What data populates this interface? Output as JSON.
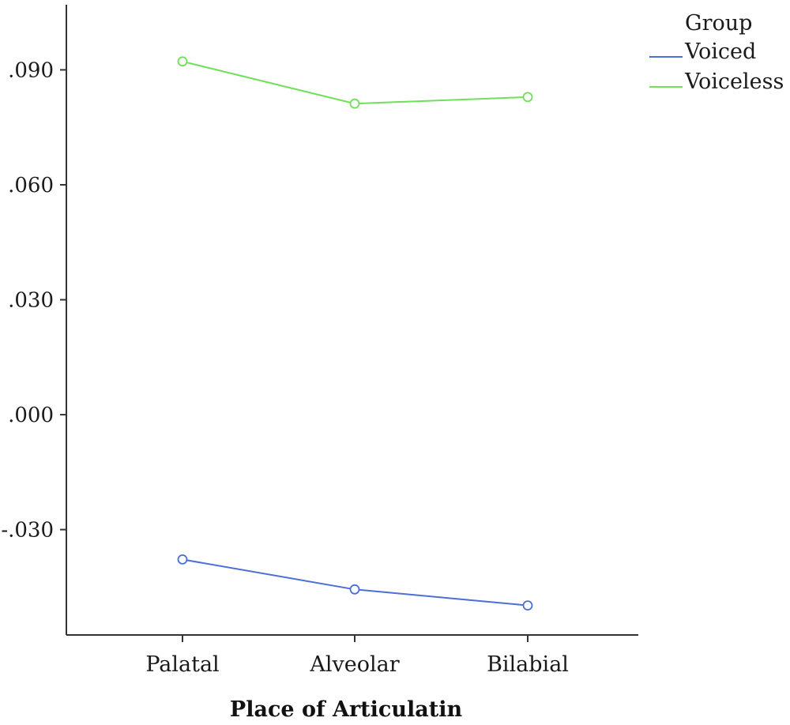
{
  "chart_data": {
    "type": "line",
    "title": "",
    "xlabel": "Place of Articulatin",
    "ylabel": "",
    "categories": [
      "Palatal",
      "Alveolar",
      "Bilabial"
    ],
    "yticks": [
      -0.03,
      0.0,
      0.03,
      0.06,
      0.09
    ],
    "ytick_labels": [
      "-.030",
      ".000",
      ".030",
      ".060",
      ".090"
    ],
    "ylim": [
      -0.0575,
      0.107
    ],
    "grid": false,
    "legend": {
      "title": "Group",
      "position": "top-right"
    },
    "series": [
      {
        "name": "Voiced",
        "color": "#4b6fd4",
        "values": [
          -0.0378,
          -0.0456,
          -0.0498
        ]
      },
      {
        "name": "Voiceless",
        "color": "#6fe05a",
        "values": [
          0.0922,
          0.0812,
          0.0829
        ]
      }
    ]
  }
}
